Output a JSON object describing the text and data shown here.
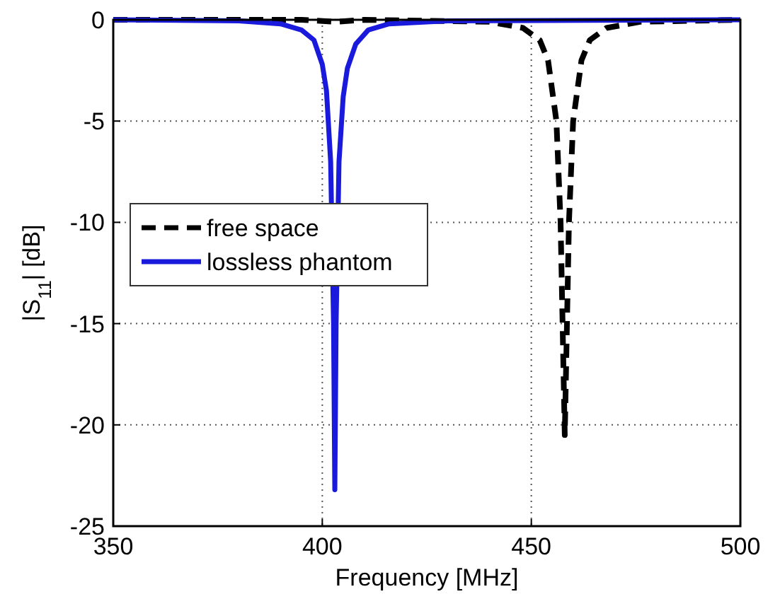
{
  "chart_data": {
    "type": "line",
    "xlabel": "Frequency [MHz]",
    "ylabel": "|S$_{11}$| [dB]",
    "xlim": [
      350,
      500
    ],
    "xticks": [
      350,
      400,
      450,
      500
    ],
    "ylim": [
      -25,
      0
    ],
    "yticks": [
      -25,
      -20,
      -15,
      -10,
      -5,
      0
    ],
    "grid": true,
    "legend": "left",
    "series": [
      {
        "name": "free space",
        "color": "#000000",
        "line_style": "dashed",
        "x": [
          350,
          395,
          403,
          410,
          440,
          448,
          452,
          454,
          456,
          457,
          458,
          459,
          460,
          462,
          464,
          468,
          476,
          500
        ],
        "values": [
          0,
          0,
          -0.1,
          0,
          -0.1,
          -0.4,
          -1,
          -2,
          -5,
          -10,
          -20.5,
          -10,
          -5,
          -2,
          -1,
          -0.4,
          -0.1,
          0
        ]
      },
      {
        "name": "lossless phantom",
        "color": "#1a1adc",
        "line_style": "solid",
        "x": [
          350,
          380,
          390,
          395,
          398,
          400,
          401,
          402,
          402.7,
          403,
          403.3,
          404,
          405,
          406,
          408,
          411,
          416,
          430,
          500
        ],
        "values": [
          0,
          -0.05,
          -0.2,
          -0.5,
          -1,
          -2.2,
          -3.5,
          -7,
          -15,
          -23.2,
          -15,
          -7,
          -3.8,
          -2.4,
          -1.2,
          -0.5,
          -0.2,
          -0.05,
          0
        ]
      }
    ]
  }
}
